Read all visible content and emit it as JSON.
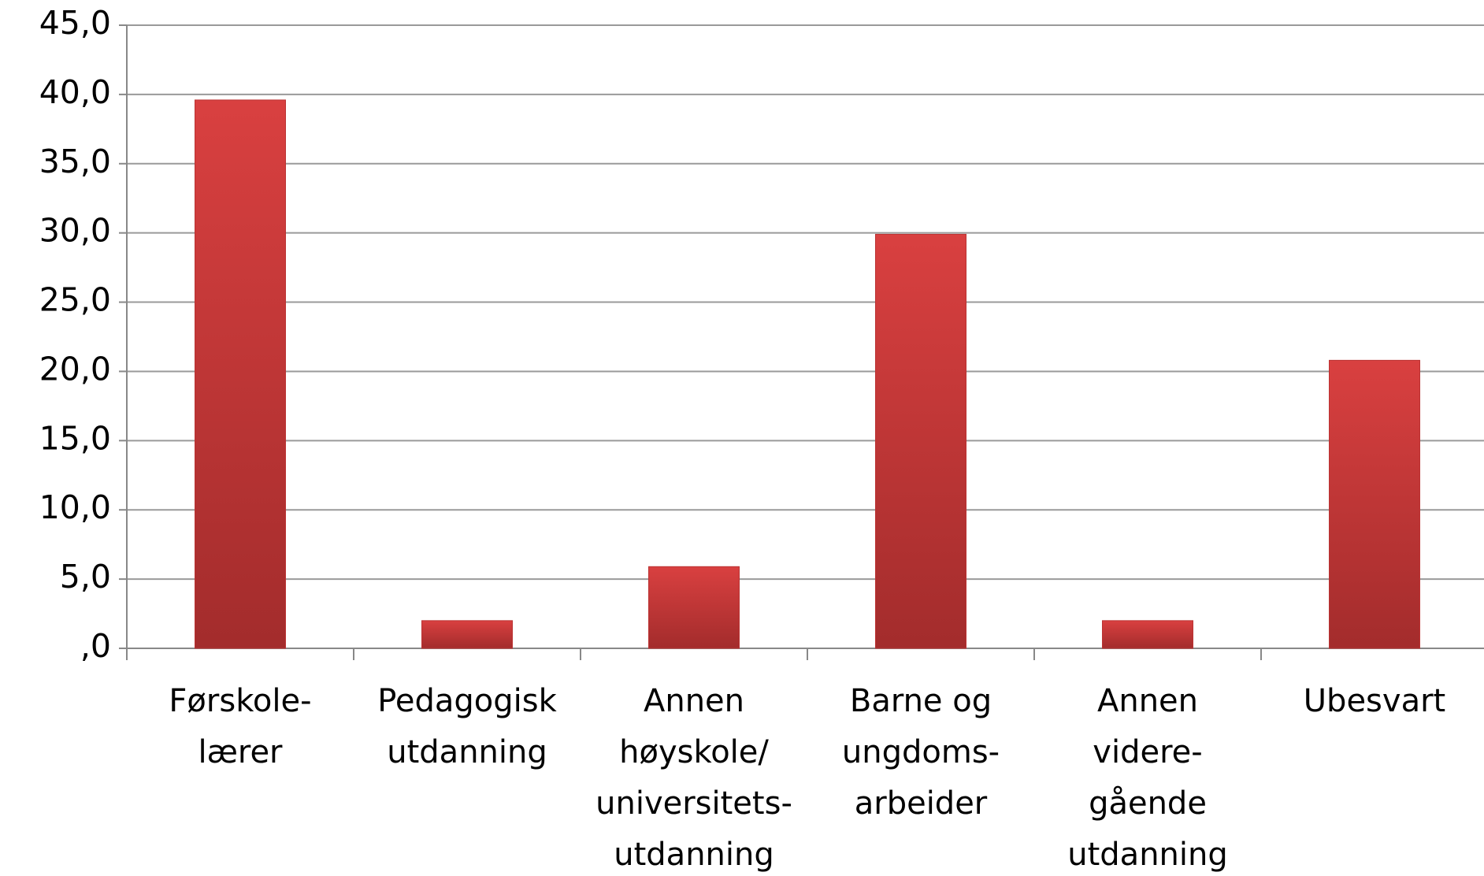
{
  "chart_data": {
    "type": "bar",
    "categories": [
      "Førskole-\nlærer",
      "Pedagogisk\nutdanning",
      "Annen\nhøyskole/\nuniversitets-\nutdanning",
      "Barne og\nungdoms-\narbeider",
      "Annen\nvidere-\ngående\nutdanning",
      "Ubesvart"
    ],
    "values": [
      39.6,
      2.0,
      5.9,
      29.9,
      2.0,
      20.8
    ],
    "color": "#d94040",
    "ylim": [
      0,
      45
    ],
    "yticks": [
      {
        "value": 0,
        "label": ",0"
      },
      {
        "value": 5,
        "label": "5,0"
      },
      {
        "value": 10,
        "label": "10,0"
      },
      {
        "value": 15,
        "label": "15,0"
      },
      {
        "value": 20,
        "label": "20,0"
      },
      {
        "value": 25,
        "label": "25,0"
      },
      {
        "value": 30,
        "label": "30,0"
      },
      {
        "value": 35,
        "label": "35,0"
      },
      {
        "value": 40,
        "label": "40,0"
      },
      {
        "value": 45,
        "label": "45,0"
      }
    ],
    "grid": true
  }
}
